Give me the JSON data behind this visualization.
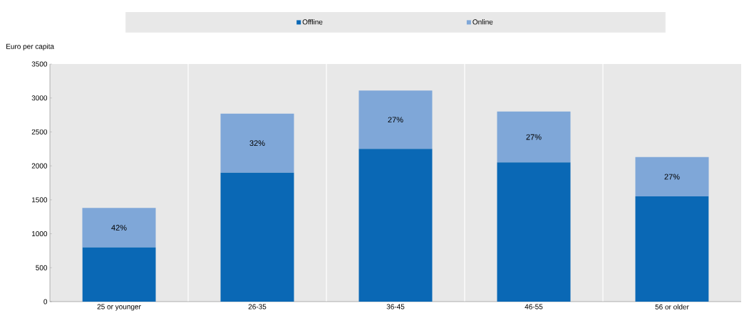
{
  "chart_data": {
    "type": "bar",
    "stacked": true,
    "ylabel": "Euro per capita",
    "categories": [
      "25 or younger",
      "26-35",
      "36-45",
      "46-55",
      "56 or older"
    ],
    "series": [
      {
        "name": "Offline",
        "color": "#0a68b5",
        "values": [
          800,
          1900,
          2250,
          2050,
          1550
        ]
      },
      {
        "name": "Online",
        "color": "#7fa7d8",
        "values": [
          580,
          870,
          860,
          750,
          580
        ]
      }
    ],
    "annotations": [
      "42%",
      "32%",
      "27%",
      "27%",
      "27%"
    ],
    "ylim": [
      0,
      3500
    ],
    "yticks": [
      0,
      500,
      1000,
      1500,
      2000,
      2500,
      3000,
      3500
    ],
    "grid": "x",
    "legend": "top"
  }
}
